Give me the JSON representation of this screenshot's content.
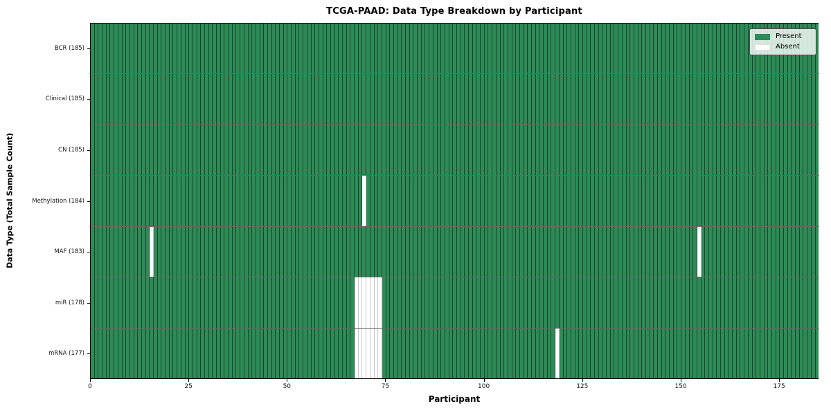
{
  "title": "TCGA-PAAD: Data Type Breakdown by Participant",
  "xlabel": "Participant",
  "ylabel": "Data Type (Total Sample Count)",
  "legend": {
    "present_label": "Present",
    "absent_label": "Absent"
  },
  "colors": {
    "present": "#2e8b57",
    "absent": "#ffffff"
  },
  "chart_data": {
    "type": "heatmap",
    "title": "TCGA-PAAD: Data Type Breakdown by Participant",
    "xlabel": "Participant",
    "ylabel": "Data Type (Total Sample Count)",
    "legend_entries": [
      "Present",
      "Absent"
    ],
    "legend_position": "upper right",
    "n_participants": 185,
    "x_range": [
      0,
      185
    ],
    "x_ticks": [
      0,
      25,
      50,
      75,
      100,
      125,
      150,
      175
    ],
    "rows": [
      {
        "label": "BCR (185)",
        "data_type": "BCR",
        "total_sample_count": 185,
        "absent_participants": []
      },
      {
        "label": "Clinical (185)",
        "data_type": "Clinical",
        "total_sample_count": 185,
        "absent_participants": []
      },
      {
        "label": "CN (185)",
        "data_type": "CN",
        "total_sample_count": 185,
        "absent_participants": []
      },
      {
        "label": "Methylation (184)",
        "data_type": "Methylation",
        "total_sample_count": 184,
        "absent_participants": [
          69
        ]
      },
      {
        "label": "MAF (183)",
        "data_type": "MAF",
        "total_sample_count": 183,
        "absent_participants": [
          15,
          154
        ]
      },
      {
        "label": "miR (178)",
        "data_type": "miR",
        "total_sample_count": 178,
        "absent_participants": [
          67,
          68,
          69,
          70,
          71,
          72,
          73
        ]
      },
      {
        "label": "mRNA (177)",
        "data_type": "mRNA",
        "total_sample_count": 177,
        "absent_participants": [
          67,
          68,
          69,
          70,
          71,
          72,
          73,
          118
        ]
      }
    ]
  }
}
